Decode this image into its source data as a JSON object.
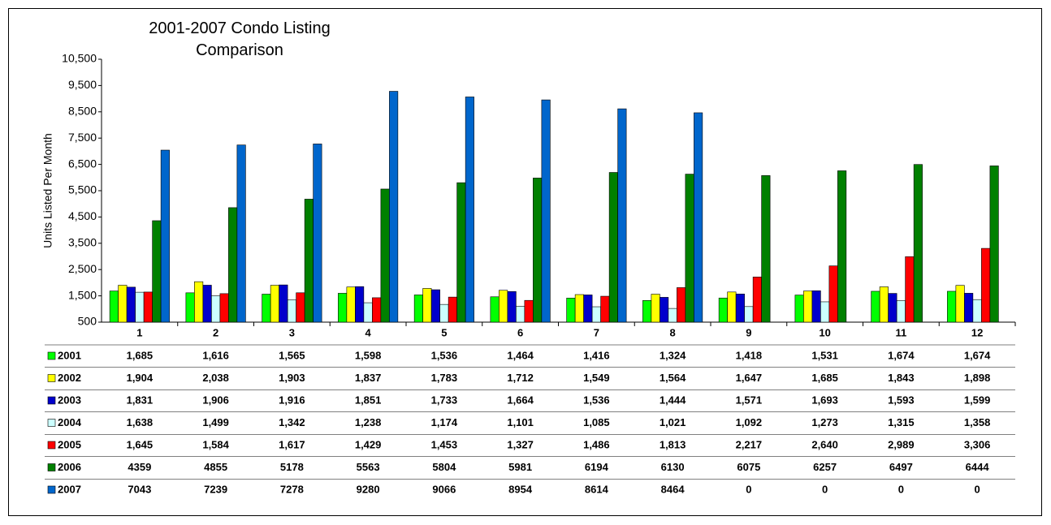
{
  "chart_data": {
    "type": "bar",
    "title": "2001-2007 Condo Listing Comparison",
    "y_label": "Units Listed Per Month",
    "categories": [
      "1",
      "2",
      "3",
      "4",
      "5",
      "6",
      "7",
      "8",
      "9",
      "10",
      "11",
      "12"
    ],
    "ylim": [
      500,
      10500
    ],
    "yticks": [
      500,
      {
        "value": 1500,
        "label": "1,500"
      },
      {
        "value": 2500,
        "label": "2,500"
      },
      {
        "value": 3500,
        "label": "3,500"
      },
      {
        "value": 4500,
        "label": "4,500"
      },
      {
        "value": 5500,
        "label": "5,500"
      },
      {
        "value": 6500,
        "label": "6,500"
      },
      {
        "value": 7500,
        "label": "7,500"
      },
      {
        "value": 8500,
        "label": "8,500"
      },
      {
        "value": 9500,
        "label": "9,500"
      },
      {
        "value": 10500,
        "label": "10,500"
      }
    ],
    "grid": false,
    "series": [
      {
        "name": "2001",
        "color": "#00ff00",
        "values": [
          1685,
          1616,
          1565,
          1598,
          1536,
          1464,
          1416,
          1324,
          1418,
          1531,
          1674,
          1674
        ],
        "value_labels": [
          "1,685",
          "1,616",
          "1,565",
          "1,598",
          "1,536",
          "1,464",
          "1,416",
          "1,324",
          "1,418",
          "1,531",
          "1,674",
          "1,674"
        ]
      },
      {
        "name": "2002",
        "color": "#ffff00",
        "values": [
          1904,
          2038,
          1903,
          1837,
          1783,
          1712,
          1549,
          1564,
          1647,
          1685,
          1843,
          1898
        ],
        "value_labels": [
          "1,904",
          "2,038",
          "1,903",
          "1,837",
          "1,783",
          "1,712",
          "1,549",
          "1,564",
          "1,647",
          "1,685",
          "1,843",
          "1,898"
        ]
      },
      {
        "name": "2003",
        "color": "#0000cc",
        "values": [
          1831,
          1906,
          1916,
          1851,
          1733,
          1664,
          1536,
          1444,
          1571,
          1693,
          1593,
          1599
        ],
        "value_labels": [
          "1,831",
          "1,906",
          "1,916",
          "1,851",
          "1,733",
          "1,664",
          "1,536",
          "1,444",
          "1,571",
          "1,693",
          "1,593",
          "1,599"
        ]
      },
      {
        "name": "2004",
        "color": "#ccffff",
        "values": [
          1638,
          1499,
          1342,
          1238,
          1174,
          1101,
          1085,
          1021,
          1092,
          1273,
          1315,
          1358
        ],
        "value_labels": [
          "1,638",
          "1,499",
          "1,342",
          "1,238",
          "1,174",
          "1,101",
          "1,085",
          "1,021",
          "1,092",
          "1,273",
          "1,315",
          "1,358"
        ]
      },
      {
        "name": "2005",
        "color": "#ff0000",
        "values": [
          1645,
          1584,
          1617,
          1429,
          1453,
          1327,
          1486,
          1813,
          2217,
          2640,
          2989,
          3306
        ],
        "value_labels": [
          "1,645",
          "1,584",
          "1,617",
          "1,429",
          "1,453",
          "1,327",
          "1,486",
          "1,813",
          "2,217",
          "2,640",
          "2,989",
          "3,306"
        ]
      },
      {
        "name": "2006",
        "color": "#008000",
        "values": [
          4359,
          4855,
          5178,
          5563,
          5804,
          5981,
          6194,
          6130,
          6075,
          6257,
          6497,
          6444
        ]
      },
      {
        "name": "2007",
        "color": "#0066cc",
        "values": [
          7043,
          7239,
          7278,
          9280,
          9066,
          8954,
          8614,
          8464,
          0,
          0,
          0,
          0
        ]
      }
    ]
  }
}
